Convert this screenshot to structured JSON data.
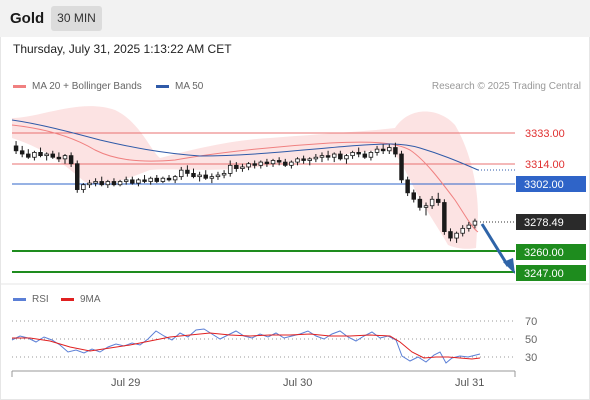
{
  "header": {
    "title": "Gold",
    "timeframe": "30 MIN"
  },
  "datetime": "Thursday, July 31, 2025 1:13:22 AM CET",
  "legend": {
    "bollinger_label": "MA 20 + Bollinger Bands",
    "ma50_label": "MA 50",
    "rsi_label": "RSI",
    "ma9_label": "9MA"
  },
  "research": "Research © 2025 Trading Central",
  "colors": {
    "bollinger": "#f08080",
    "ma50": "#2f5aa8",
    "support": "#1e8c1e",
    "resistance": "#e06060",
    "rsi": "#5b7fd6",
    "rsi_ma": "#e02020",
    "arrow": "#2f64a8",
    "candle": "#1a1a1a"
  },
  "price_levels": [
    {
      "label": "3333.00",
      "kind": "resistance",
      "value": 3333.0
    },
    {
      "label": "3314.00",
      "kind": "resistance",
      "value": 3314.0
    },
    {
      "label": "3302.00",
      "kind": "pivot",
      "value": 3302.0
    },
    {
      "label": "3278.49",
      "kind": "last",
      "value": 3278.49
    },
    {
      "label": "3260.00",
      "kind": "support",
      "value": 3260.0
    },
    {
      "label": "3247.00",
      "kind": "support",
      "value": 3247.0
    }
  ],
  "x_axis": {
    "labels": [
      "Jul 29",
      "Jul 30",
      "Jul 31"
    ]
  },
  "rsi_axis": {
    "labels": [
      "70",
      "50",
      "30"
    ]
  },
  "chart_data": {
    "type": "candlestick",
    "title": "Gold 30 MIN",
    "ylim": [
      3237,
      3346
    ],
    "ohlc": [
      [
        3325,
        3328,
        3320,
        3322
      ],
      [
        3322,
        3325,
        3318,
        3320
      ],
      [
        3320,
        3323,
        3317,
        3318
      ],
      [
        3318,
        3322,
        3316,
        3321
      ],
      [
        3321,
        3324,
        3318,
        3319
      ],
      [
        3319,
        3321,
        3316,
        3320
      ],
      [
        3320,
        3322,
        3317,
        3318
      ],
      [
        3318,
        3321,
        3315,
        3317
      ],
      [
        3317,
        3320,
        3314,
        3319
      ],
      [
        3319,
        3321,
        3312,
        3314
      ],
      [
        3314,
        3316,
        3296,
        3298
      ],
      [
        3298,
        3302,
        3296,
        3301
      ],
      [
        3301,
        3304,
        3299,
        3302
      ],
      [
        3302,
        3305,
        3300,
        3303
      ],
      [
        3303,
        3306,
        3300,
        3301
      ],
      [
        3301,
        3304,
        3299,
        3303
      ],
      [
        3303,
        3305,
        3300,
        3301
      ],
      [
        3301,
        3304,
        3300,
        3303
      ],
      [
        3303,
        3306,
        3301,
        3304
      ],
      [
        3304,
        3306,
        3301,
        3302
      ],
      [
        3302,
        3305,
        3300,
        3304
      ],
      [
        3304,
        3307,
        3302,
        3303
      ],
      [
        3303,
        3306,
        3301,
        3305
      ],
      [
        3305,
        3307,
        3302,
        3303
      ],
      [
        3303,
        3306,
        3302,
        3305
      ],
      [
        3305,
        3307,
        3303,
        3304
      ],
      [
        3304,
        3307,
        3302,
        3306
      ],
      [
        3306,
        3312,
        3304,
        3310
      ],
      [
        3310,
        3313,
        3306,
        3308
      ],
      [
        3308,
        3311,
        3305,
        3306
      ],
      [
        3306,
        3309,
        3303,
        3307
      ],
      [
        3307,
        3310,
        3304,
        3305
      ],
      [
        3305,
        3308,
        3302,
        3306
      ],
      [
        3306,
        3309,
        3304,
        3307
      ],
      [
        3307,
        3310,
        3305,
        3308
      ],
      [
        3308,
        3316,
        3306,
        3313
      ],
      [
        3313,
        3315,
        3309,
        3311
      ],
      [
        3311,
        3314,
        3309,
        3312
      ],
      [
        3312,
        3315,
        3310,
        3314
      ],
      [
        3314,
        3316,
        3311,
        3313
      ],
      [
        3313,
        3316,
        3311,
        3315
      ],
      [
        3315,
        3317,
        3312,
        3314
      ],
      [
        3314,
        3317,
        3312,
        3316
      ],
      [
        3316,
        3318,
        3313,
        3315
      ],
      [
        3315,
        3317,
        3312,
        3313
      ],
      [
        3313,
        3316,
        3311,
        3315
      ],
      [
        3315,
        3318,
        3313,
        3317
      ],
      [
        3317,
        3319,
        3314,
        3316
      ],
      [
        3316,
        3318,
        3313,
        3317
      ],
      [
        3317,
        3320,
        3315,
        3318
      ],
      [
        3318,
        3321,
        3315,
        3319
      ],
      [
        3319,
        3322,
        3316,
        3318
      ],
      [
        3318,
        3321,
        3315,
        3320
      ],
      [
        3320,
        3322,
        3316,
        3317
      ],
      [
        3317,
        3320,
        3314,
        3319
      ],
      [
        3319,
        3322,
        3317,
        3321
      ],
      [
        3321,
        3324,
        3318,
        3320
      ],
      [
        3320,
        3322,
        3317,
        3318
      ],
      [
        3318,
        3322,
        3316,
        3321
      ],
      [
        3321,
        3325,
        3319,
        3323
      ],
      [
        3323,
        3326,
        3320,
        3322
      ],
      [
        3322,
        3326,
        3320,
        3324
      ],
      [
        3324,
        3327,
        3318,
        3320
      ],
      [
        3320,
        3322,
        3302,
        3304
      ],
      [
        3304,
        3306,
        3294,
        3296
      ],
      [
        3296,
        3298,
        3290,
        3292
      ],
      [
        3292,
        3294,
        3285,
        3287
      ],
      [
        3287,
        3290,
        3282,
        3288
      ],
      [
        3288,
        3294,
        3286,
        3292
      ],
      [
        3292,
        3296,
        3288,
        3290
      ],
      [
        3290,
        3292,
        3270,
        3272
      ],
      [
        3272,
        3274,
        3266,
        3268
      ],
      [
        3268,
        3272,
        3265,
        3271
      ],
      [
        3271,
        3276,
        3269,
        3274
      ],
      [
        3274,
        3278,
        3272,
        3276
      ],
      [
        3276,
        3280,
        3274,
        3278.49
      ]
    ]
  }
}
